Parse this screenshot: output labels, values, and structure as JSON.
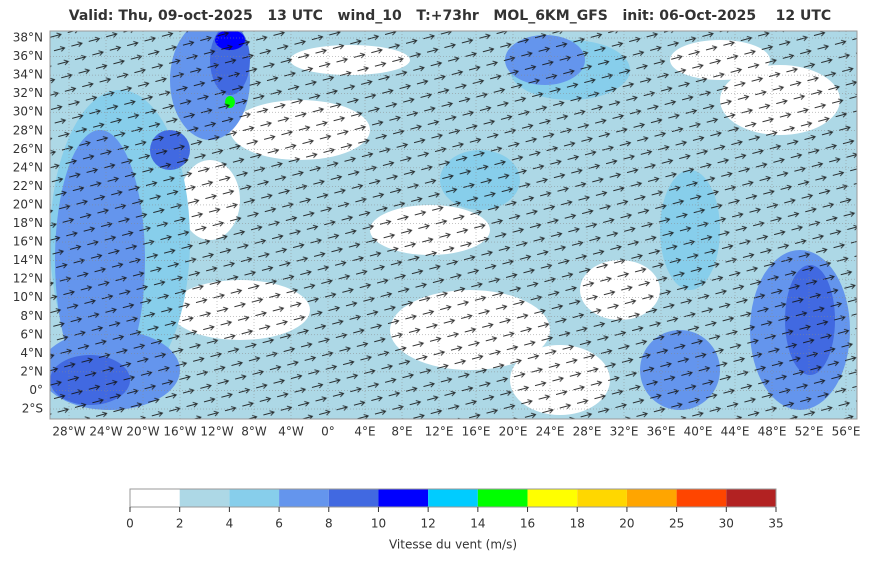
{
  "title": "Valid: Thu, 09-oct-2025   13 UTC   wind_10   T:+73hr   MOL_6KM_GFS   init: 06-Oct-2025    12 UTC",
  "map": {
    "lat_labels": [
      "38°N",
      "36°N",
      "34°N",
      "32°N",
      "30°N",
      "28°N",
      "26°N",
      "24°N",
      "22°N",
      "20°N",
      "18°N",
      "16°N",
      "14°N",
      "12°N",
      "10°N",
      "8°N",
      "6°N",
      "4°N",
      "2°N",
      "0°",
      "2°S"
    ],
    "lon_labels": [
      "28°W",
      "24°W",
      "20°W",
      "16°W",
      "12°W",
      "8°W",
      "4°W",
      "0°",
      "4°E",
      "8°E",
      "12°E",
      "16°E",
      "20°E",
      "24°E",
      "28°E",
      "32°E",
      "36°E",
      "40°E",
      "44°E",
      "48°E",
      "52°E",
      "56°E"
    ]
  },
  "colorbar": {
    "label": "Vitesse du vent (m/s)",
    "ticks": [
      "0",
      "2",
      "4",
      "6",
      "8",
      "10",
      "12",
      "14",
      "16",
      "18",
      "20",
      "25",
      "30",
      "35"
    ],
    "colors": [
      "#ffffff",
      "#add8e6",
      "#87ceeb",
      "#6495ed",
      "#4169e1",
      "#0000ff",
      "#00ccff",
      "#00ff00",
      "#ffff00",
      "#ffd700",
      "#ffa500",
      "#ff4500",
      "#b22222"
    ]
  }
}
